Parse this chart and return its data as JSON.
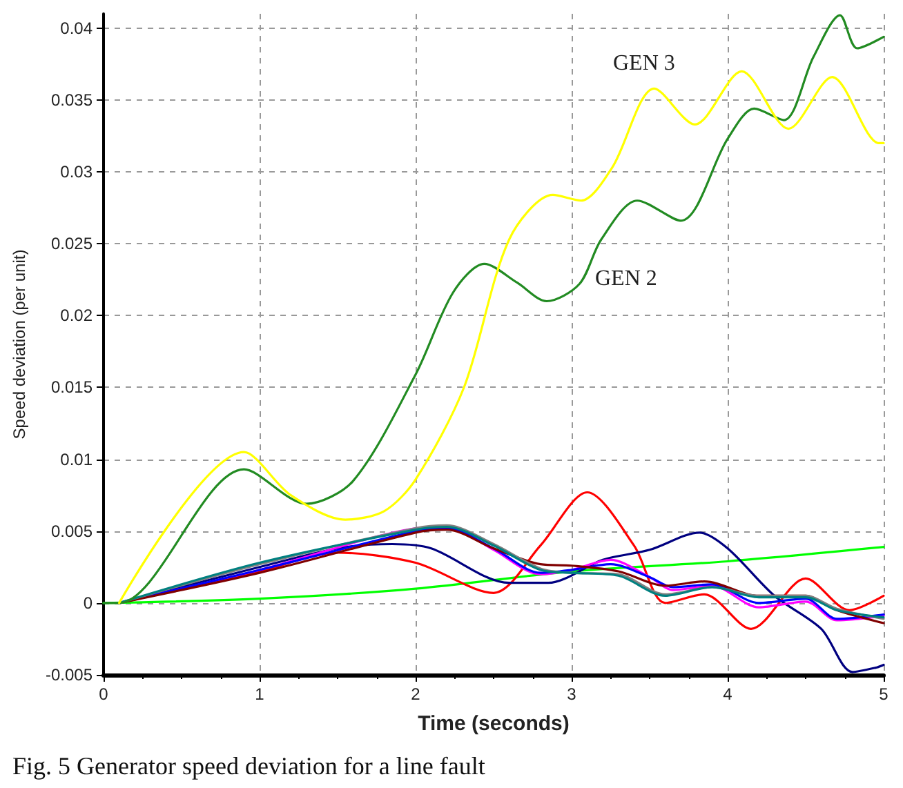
{
  "chart_data": {
    "type": "line",
    "xlabel": "Time (seconds)",
    "ylabel": "Speed deviation (per unit)",
    "xlim": [
      0,
      5
    ],
    "xticks": [
      0,
      1,
      2,
      3,
      4,
      5
    ],
    "ylim": [
      -0.005,
      0.041
    ],
    "yticks": [
      -0.005,
      0,
      0.005,
      0.01,
      0.015,
      0.02,
      0.025,
      0.03,
      0.035,
      0.04
    ],
    "grid": true,
    "marker": "none",
    "line_style": "solid",
    "annotations": [
      "GEN 3",
      "GEN 2",
      "Fig. 5 Generator speed deviation for a line fault"
    ],
    "series": [
      {
        "color": "#00ff00",
        "x": [
          0,
          1,
          2,
          3,
          4,
          5
        ],
        "values": [
          0,
          0.0003,
          0.001,
          0.0022,
          0.0029,
          0.0039
        ]
      },
      {
        "color": "#ff0000",
        "x": [
          0.1,
          1,
          1.5,
          2,
          2.5,
          2.8,
          3.1,
          3.4,
          3.6,
          3.85,
          4.15,
          4.5,
          4.78,
          5
        ],
        "values": [
          0,
          0.0022,
          0.0035,
          0.0028,
          0.0007,
          0.004,
          0.0077,
          0.004,
          0,
          0.0006,
          -0.0018,
          0.0017,
          -0.0005,
          0.0005
        ]
      },
      {
        "color": "#000080",
        "x": [
          0.1,
          1,
          1.5,
          1.85,
          2.1,
          2.6,
          2.85,
          3.2,
          3.5,
          3.82,
          4,
          4.3,
          4.6,
          4.8,
          4.95,
          5
        ],
        "values": [
          0,
          0.0025,
          0.0038,
          0.0041,
          0.0038,
          0.0014,
          0.0014,
          0.003,
          0.0037,
          0.0049,
          0.0038,
          0.0005,
          -0.0018,
          -0.0048,
          -0.0045,
          -0.0043
        ]
      },
      {
        "color": "#ff00ff",
        "x": [
          0.1,
          1,
          2,
          2.2,
          2.5,
          2.8,
          3,
          3.25,
          3.5,
          3.65,
          3.9,
          4.2,
          4.5,
          4.7,
          5
        ],
        "values": [
          0,
          0.0023,
          0.0052,
          0.0053,
          0.0037,
          0.002,
          0.0023,
          0.003,
          0.0018,
          0.0009,
          0.0012,
          -0.0003,
          0.0001,
          -0.0012,
          -0.0009
        ]
      },
      {
        "color": "#0000ff",
        "x": [
          0.1,
          1,
          2,
          2.2,
          2.5,
          2.8,
          3,
          3.25,
          3.5,
          3.65,
          3.9,
          4.2,
          4.5,
          4.7,
          5
        ],
        "values": [
          0,
          0.0023,
          0.005,
          0.0052,
          0.0038,
          0.0021,
          0.0023,
          0.0027,
          0.0018,
          0.0011,
          0.0013,
          0,
          0.0003,
          -0.0011,
          -0.0008
        ]
      },
      {
        "color": "#800000",
        "x": [
          0.1,
          1,
          2,
          2.2,
          2.5,
          2.8,
          3,
          3.3,
          3.6,
          3.85,
          4.2,
          4.5,
          4.7,
          5
        ],
        "values": [
          0,
          0.0021,
          0.0049,
          0.0051,
          0.0038,
          0.0027,
          0.0026,
          0.0022,
          0.0012,
          0.0015,
          0.0005,
          0.0005,
          -0.0005,
          -0.0014
        ]
      },
      {
        "color": "#808080",
        "x": [
          0.1,
          1,
          2,
          2.2,
          2.5,
          2.8,
          3,
          3.3,
          3.6,
          3.9,
          4.2,
          4.5,
          4.7,
          5
        ],
        "values": [
          0,
          0.0027,
          0.0052,
          0.0054,
          0.0041,
          0.0024,
          0.0021,
          0.002,
          0.0006,
          0.0011,
          0.0005,
          0.0005,
          -0.0004,
          -0.0011
        ]
      },
      {
        "color": "#008080",
        "x": [
          0.1,
          1,
          2,
          2.2,
          2.5,
          2.8,
          3,
          3.3,
          3.6,
          3.9,
          4.2,
          4.5,
          4.7,
          5
        ],
        "values": [
          0,
          0.0028,
          0.0051,
          0.0053,
          0.004,
          0.0023,
          0.0021,
          0.0019,
          0.0005,
          0.0011,
          0.0004,
          0.0004,
          -0.0005,
          -0.001
        ]
      },
      {
        "color": "#228b22",
        "x": [
          0,
          0.1,
          0.9,
          1.3,
          1.6,
          2,
          2.24,
          2.44,
          2.65,
          2.84,
          3.05,
          3.19,
          3.42,
          3.7,
          4,
          4.17,
          4.36,
          4.55,
          4.72,
          4.83,
          5
        ],
        "values": [
          0,
          0,
          0.0093,
          0.0069,
          0.0085,
          0.0159,
          0.0216,
          0.0236,
          0.0223,
          0.021,
          0.0222,
          0.0253,
          0.028,
          0.0266,
          0.0323,
          0.0344,
          0.0336,
          0.038,
          0.0409,
          0.0386,
          0.0394
        ]
      },
      {
        "color": "#ffff00",
        "x": [
          0.1,
          0.9,
          1.2,
          1.55,
          1.8,
          2,
          2.31,
          2.6,
          2.88,
          3.06,
          3.26,
          3.53,
          3.79,
          4.09,
          4.39,
          4.67,
          4.97,
          5
        ],
        "values": [
          0,
          0.0105,
          0.0075,
          0.0058,
          0.0064,
          0.0086,
          0.015,
          0.0253,
          0.0284,
          0.028,
          0.0303,
          0.0358,
          0.0333,
          0.037,
          0.033,
          0.0366,
          0.032,
          0.032
        ]
      }
    ]
  }
}
